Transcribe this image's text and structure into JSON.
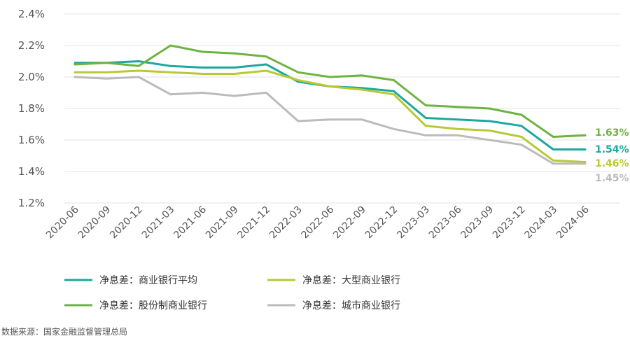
{
  "chart_data": {
    "type": "line",
    "categories": [
      "2020-06",
      "2020-09",
      "2020-12",
      "2021-03",
      "2021-06",
      "2021-09",
      "2021-12",
      "2022-03",
      "2022-06",
      "2022-09",
      "2022-12",
      "2023-03",
      "2023-06",
      "2023-09",
      "2023-12",
      "2024-03",
      "2024-06"
    ],
    "y_ticks": [
      "1.2%",
      "1.4%",
      "1.6%",
      "1.8%",
      "2.0%",
      "2.2%",
      "2.4%"
    ],
    "ylim": [
      1.2,
      2.4
    ],
    "grid": true,
    "legend_position": "bottom",
    "series": [
      {
        "name": "净息差：商业银行平均",
        "color": "#1BA8A0",
        "end_label": "1.54%",
        "values": [
          2.09,
          2.09,
          2.1,
          2.07,
          2.06,
          2.06,
          2.08,
          1.97,
          1.94,
          1.93,
          1.91,
          1.74,
          1.73,
          1.72,
          1.69,
          1.54,
          1.54
        ]
      },
      {
        "name": "净息差：大型商业银行",
        "color": "#B8C934",
        "end_label": "1.46%",
        "values": [
          2.03,
          2.03,
          2.04,
          2.03,
          2.02,
          2.02,
          2.04,
          1.98,
          1.94,
          1.92,
          1.89,
          1.69,
          1.67,
          1.66,
          1.62,
          1.47,
          1.46
        ]
      },
      {
        "name": "净息差：股份制商业银行",
        "color": "#6DB33F",
        "end_label": "1.63%",
        "values": [
          2.08,
          2.09,
          2.07,
          2.2,
          2.16,
          2.15,
          2.13,
          2.03,
          2.0,
          2.01,
          1.98,
          1.82,
          1.81,
          1.8,
          1.76,
          1.62,
          1.63
        ]
      },
      {
        "name": "净息差：城市商业银行",
        "color": "#BBBBBB",
        "end_label": "1.45%",
        "values": [
          2.0,
          1.99,
          2.0,
          1.89,
          1.9,
          1.88,
          1.9,
          1.72,
          1.73,
          1.73,
          1.67,
          1.63,
          1.63,
          1.6,
          1.57,
          1.45,
          1.45
        ]
      }
    ]
  },
  "legend": [
    {
      "label": "净息差：商业银行平均",
      "color": "#1BA8A0"
    },
    {
      "label": "净息差：大型商业银行",
      "color": "#B8C934"
    },
    {
      "label": "净息差：股份制商业银行",
      "color": "#6DB33F"
    },
    {
      "label": "净息差：城市商业银行",
      "color": "#BBBBBB"
    }
  ],
  "source_note": "数据来源：国家金融监督管理总局"
}
